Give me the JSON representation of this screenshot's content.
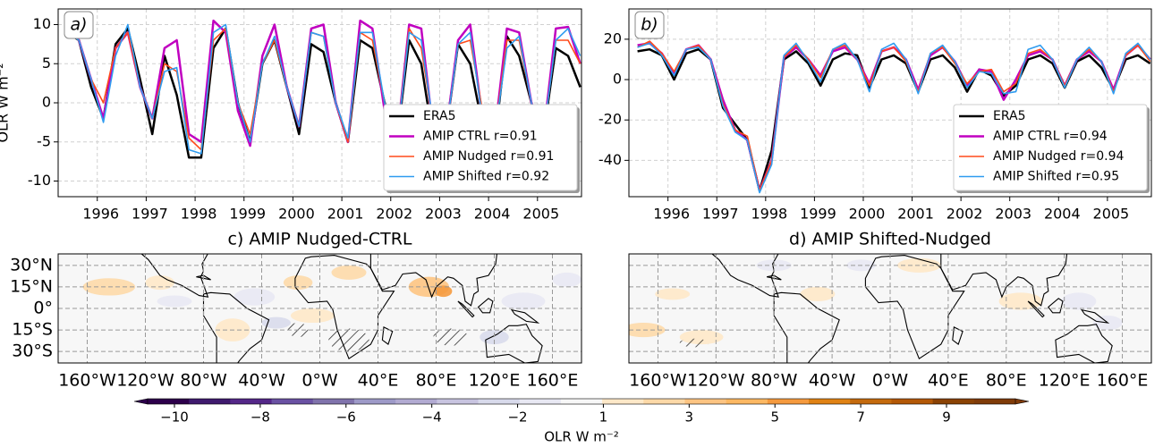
{
  "chart_data": [
    {
      "type": "line",
      "annotation": "a)",
      "ylabel": "OLR W m⁻²",
      "grid": true,
      "legend": "lower right",
      "x": [
        1995.375,
        1995.625,
        1995.875,
        1996.125,
        1996.375,
        1996.625,
        1996.875,
        1997.125,
        1997.375,
        1997.625,
        1997.875,
        1998.125,
        1998.375,
        1998.625,
        1998.875,
        1999.125,
        1999.375,
        1999.625,
        1999.875,
        2000.125,
        2000.375,
        2000.625,
        2000.875,
        2001.125,
        2001.375,
        2001.625,
        2001.875,
        2002.125,
        2002.375,
        2002.625,
        2002.875,
        2003.125,
        2003.375,
        2003.625,
        2003.875,
        2004.125,
        2004.375,
        2004.625,
        2004.875,
        2005.125,
        2005.375,
        2005.625,
        2005.875
      ],
      "xlim": [
        1995.2,
        2005.9
      ],
      "xticks": [
        1996,
        1997,
        1998,
        1999,
        2000,
        2001,
        2002,
        2003,
        2004,
        2005
      ],
      "ylim": [
        -12,
        12
      ],
      "yticks": [
        -10,
        -5,
        0,
        5,
        10
      ],
      "series": [
        {
          "name": "ERA5",
          "color": "#000000",
          "values": [
            9,
            8,
            2,
            -2,
            7.5,
            9.5,
            3,
            -4,
            6,
            1,
            -7,
            -7,
            7,
            9.5,
            0,
            -5,
            5,
            8,
            2,
            -4,
            7.5,
            6.5,
            0,
            -5,
            8,
            7,
            0,
            -5,
            8,
            5,
            -5,
            -4,
            7.5,
            5,
            -3,
            -5,
            8.5,
            6,
            0,
            -4,
            7,
            6,
            2
          ]
        },
        {
          "name": "AMIP CTRL r=0.91",
          "color": "#c000c0",
          "values": [
            10,
            8,
            3,
            -2,
            7,
            9,
            2,
            -2,
            7,
            8,
            -4,
            -5,
            10.5,
            9,
            -1,
            -5.5,
            6,
            10,
            2,
            -3,
            9.5,
            10,
            0,
            -5,
            10.5,
            9.5,
            -1,
            -5,
            10,
            9.5,
            -4,
            -4,
            8,
            10,
            -2,
            -4,
            9.5,
            9,
            0,
            -4,
            9.5,
            9.7,
            5
          ]
        },
        {
          "name": "AMIP Nudged r=0.91",
          "color": "#ff4a1a",
          "values": [
            9,
            8,
            3,
            0,
            7,
            9,
            2,
            -2,
            5,
            4,
            -4.5,
            -6,
            8,
            9.5,
            0,
            -4,
            5,
            8,
            2,
            -3,
            9,
            8.5,
            0,
            -5,
            9,
            8,
            0,
            -5,
            9.5,
            7,
            -3,
            -4,
            7.5,
            8,
            -1,
            -4,
            8,
            8,
            0,
            -4,
            8,
            8,
            5
          ]
        },
        {
          "name": "AMIP Shifted r=0.92",
          "color": "#2f9cf0",
          "values": [
            9,
            8,
            3,
            -2.5,
            6,
            10,
            2,
            -2,
            4,
            4.5,
            -6,
            -6.5,
            9,
            10,
            0,
            -5,
            5,
            8.5,
            2,
            -3,
            9,
            8.5,
            0,
            -4.5,
            9,
            9,
            0,
            -5,
            9,
            8,
            -3,
            -4,
            7.5,
            9,
            -2,
            -4,
            7,
            8.5,
            0,
            -4,
            8,
            9.5,
            6
          ]
        }
      ]
    },
    {
      "type": "line",
      "annotation": "b)",
      "grid": true,
      "legend": "lower right",
      "x": [
        1995.375,
        1995.625,
        1995.875,
        1996.125,
        1996.375,
        1996.625,
        1996.875,
        1997.125,
        1997.375,
        1997.625,
        1997.875,
        1998.125,
        1998.375,
        1998.625,
        1998.875,
        1999.125,
        1999.375,
        1999.625,
        1999.875,
        2000.125,
        2000.375,
        2000.625,
        2000.875,
        2001.125,
        2001.375,
        2001.625,
        2001.875,
        2002.125,
        2002.375,
        2002.625,
        2002.875,
        2003.125,
        2003.375,
        2003.625,
        2003.875,
        2004.125,
        2004.375,
        2004.625,
        2004.875,
        2005.125,
        2005.375,
        2005.625,
        2005.875
      ],
      "xlim": [
        1995.2,
        2005.9
      ],
      "xticks": [
        1996,
        1997,
        1998,
        1999,
        2000,
        2001,
        2002,
        2003,
        2004,
        2005
      ],
      "ylim": [
        -58,
        35
      ],
      "yticks": [
        -40,
        -20,
        0,
        20
      ],
      "series": [
        {
          "name": "ERA5",
          "color": "#000000",
          "values": [
            14,
            15,
            12,
            0,
            13,
            15,
            10,
            -14,
            -22,
            -30,
            -55,
            -35,
            10,
            14,
            8,
            -3,
            10,
            13,
            12,
            -4,
            10,
            12,
            8,
            -6,
            10,
            12,
            6,
            -6,
            5,
            2,
            -8,
            -3,
            10,
            12,
            8,
            -4,
            9,
            12,
            6,
            -5,
            10,
            12,
            8
          ]
        },
        {
          "name": "AMIP CTRL r=0.94",
          "color": "#c000c0",
          "values": [
            17,
            18,
            13,
            3,
            15,
            17,
            10,
            -10,
            -25,
            -30,
            -55,
            -40,
            11,
            16,
            10,
            2,
            14,
            16,
            10,
            -2,
            14,
            16,
            10,
            -5,
            12,
            16,
            9,
            -3,
            5,
            4,
            -10,
            0,
            12,
            14,
            10,
            -3,
            10,
            14,
            9,
            -5,
            12,
            17,
            10
          ]
        },
        {
          "name": "AMIP Nudged r=0.94",
          "color": "#ff4a1a",
          "values": [
            16,
            19,
            13,
            4,
            15,
            17,
            10,
            -12,
            -25,
            -28,
            -55,
            -40,
            11,
            17,
            10,
            1,
            15,
            17,
            10,
            -3,
            14,
            16,
            9,
            -6,
            13,
            16,
            8,
            -2,
            4,
            5,
            -6,
            -2,
            13,
            15,
            10,
            -3,
            10,
            15,
            9,
            -6,
            12,
            17,
            9
          ]
        },
        {
          "name": "AMIP Shifted r=0.95",
          "color": "#2f9cf0",
          "values": [
            16,
            18,
            12,
            2,
            15,
            16,
            10,
            -13,
            -26,
            -30,
            -56,
            -42,
            12,
            18,
            9,
            -1,
            15,
            18,
            10,
            -6,
            15,
            18,
            10,
            -7,
            13,
            17,
            9,
            -4,
            4,
            3,
            -7,
            -6,
            15,
            17,
            10,
            -4,
            10,
            16,
            9,
            -7,
            13,
            18,
            10
          ]
        }
      ]
    }
  ],
  "maps": [
    {
      "title": "c) AMIP Nudged-CTRL",
      "xticks": [
        {
          "value": -160,
          "label": "160°W"
        },
        {
          "value": -120,
          "label": "120°W"
        },
        {
          "value": -80,
          "label": "80°W"
        },
        {
          "value": -40,
          "label": "40°W"
        },
        {
          "value": 0,
          "label": "0°W"
        },
        {
          "value": 40,
          "label": "40°E"
        },
        {
          "value": 80,
          "label": "80°E"
        },
        {
          "value": 120,
          "label": "120°E"
        },
        {
          "value": 160,
          "label": "160°E"
        }
      ],
      "yticks": [
        {
          "value": 30,
          "label": "30°N"
        },
        {
          "value": 15,
          "label": "15°N"
        },
        {
          "value": 0,
          "label": "0°"
        },
        {
          "value": -15,
          "label": "15°S"
        },
        {
          "value": -30,
          "label": "30°S"
        }
      ]
    },
    {
      "title": "d) AMIP Shifted-Nudged",
      "xticks": [
        {
          "value": -160,
          "label": "160°W"
        },
        {
          "value": -120,
          "label": "120°W"
        },
        {
          "value": -80,
          "label": "80°W"
        },
        {
          "value": -40,
          "label": "40°W"
        },
        {
          "value": 0,
          "label": "0°W"
        },
        {
          "value": 40,
          "label": "40°E"
        },
        {
          "value": 80,
          "label": "80°E"
        },
        {
          "value": 120,
          "label": "120°E"
        },
        {
          "value": 160,
          "label": "160°E"
        }
      ]
    }
  ],
  "colorbar": {
    "label": "OLR W m⁻²",
    "ticks": [
      {
        "value": -10,
        "label": "−10"
      },
      {
        "value": -8,
        "label": "−8"
      },
      {
        "value": -6,
        "label": "−6"
      },
      {
        "value": -4,
        "label": "−4"
      },
      {
        "value": -2,
        "label": "−2"
      },
      1,
      3,
      5,
      7,
      9
    ],
    "colors": [
      "#2d004b",
      "#3f1a6e",
      "#542788",
      "#6a51a3",
      "#8073ac",
      "#9e9ac8",
      "#b2abd2",
      "#c8c4e0",
      "#d8daeb",
      "#e8e8f3",
      "#f7f7f7",
      "#fee8c8",
      "#fdd9a8",
      "#fdc482",
      "#fdb863",
      "#f59a3e",
      "#e08214",
      "#c46a0d",
      "#b35806",
      "#8a4204",
      "#7f3b08"
    ]
  }
}
